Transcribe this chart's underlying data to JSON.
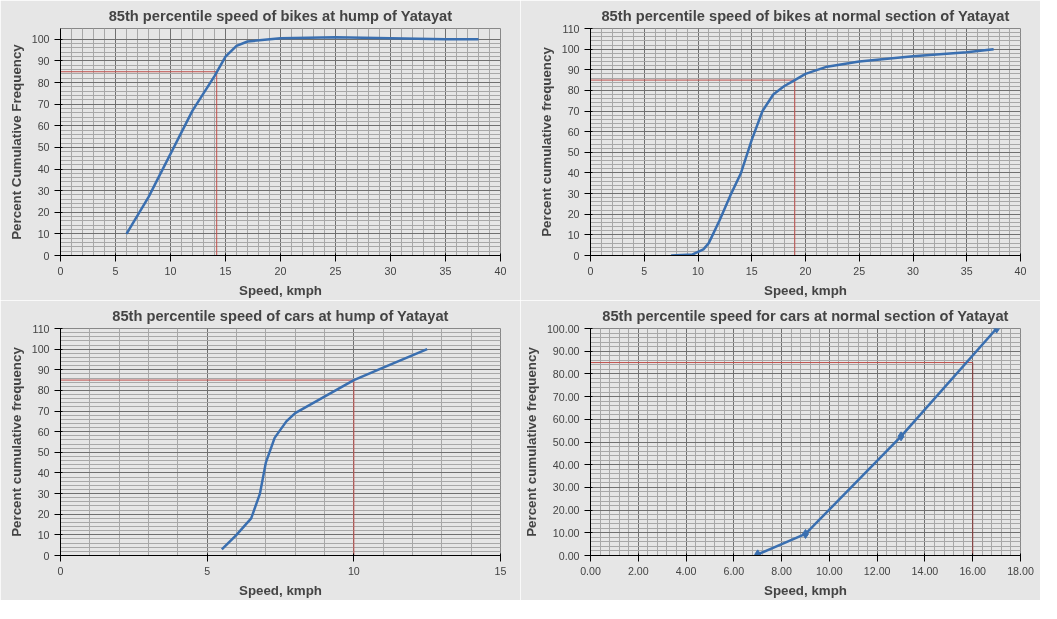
{
  "chart_data": [
    {
      "type": "line",
      "title": "85th percentile speed of bikes at hump of Yatayat",
      "xlabel": "Speed, kmph",
      "ylabel": "Percent Cumulative Frequency",
      "x": [
        6,
        8,
        10,
        12,
        14,
        15,
        16,
        17,
        20,
        25,
        30,
        35,
        38
      ],
      "series": [
        {
          "color": "#3a6fb0",
          "values": [
            10,
            27,
            47,
            67,
            83,
            92,
            97,
            99,
            100.5,
            101,
            100.5,
            100,
            100
          ]
        }
      ],
      "xlim": [
        0,
        40
      ],
      "ylim": [
        0,
        105
      ],
      "xticks": [
        0,
        5,
        10,
        15,
        20,
        25,
        30,
        35,
        40
      ],
      "yticks": [
        0,
        10,
        20,
        30,
        40,
        50,
        60,
        70,
        80,
        90,
        100
      ],
      "grid": true,
      "marker": "none",
      "ref_lines": [
        {
          "axis": "x",
          "value": 14.2,
          "color": "#c0504d"
        },
        {
          "axis": "y",
          "value": 85,
          "color": "#c0504d"
        }
      ]
    },
    {
      "type": "line",
      "title": "85th percentile speed of bikes at normal section of Yatayat",
      "xlabel": "Speed, kmph",
      "ylabel": "Percent cumulative frequency",
      "x": [
        7.5,
        9.5,
        10.5,
        11,
        12,
        13,
        14,
        15,
        16,
        17,
        18,
        19,
        20,
        22,
        25,
        30,
        35,
        37.5
      ],
      "series": [
        {
          "color": "#3a6fb0",
          "values": [
            0,
            0.5,
            3,
            6,
            17,
            29,
            40,
            56,
            70,
            78,
            82,
            85,
            88,
            91.5,
            94,
            96.5,
            98.5,
            100
          ]
        }
      ],
      "xlim": [
        0,
        40
      ],
      "ylim": [
        0,
        110
      ],
      "xticks": [
        0,
        5,
        10,
        15,
        20,
        25,
        30,
        35,
        40
      ],
      "yticks": [
        0,
        10,
        20,
        30,
        40,
        50,
        60,
        70,
        80,
        90,
        100,
        110
      ],
      "grid": true,
      "marker": "none",
      "ref_lines": [
        {
          "axis": "x",
          "value": 19,
          "color": "#c0504d"
        },
        {
          "axis": "y",
          "value": 85,
          "color": "#c0504d"
        }
      ]
    },
    {
      "type": "line",
      "title": "85th percentile speed of cars at hump of Yatayat",
      "xlabel": "Speed, kmph",
      "ylabel": "Percent cumulative frequency",
      "x": [
        5.5,
        6,
        6.5,
        6.8,
        7,
        7.3,
        7.7,
        8,
        9,
        10,
        11,
        12.5
      ],
      "series": [
        {
          "color": "#3a6fb0",
          "values": [
            3,
            10,
            18,
            30,
            45,
            57,
            65,
            69,
            77,
            85,
            91,
            100
          ]
        }
      ],
      "xlim": [
        0,
        15
      ],
      "ylim": [
        0,
        110
      ],
      "xticks": [
        0,
        5,
        10,
        15
      ],
      "yticks": [
        0,
        10,
        20,
        30,
        40,
        50,
        60,
        70,
        80,
        90,
        100,
        110
      ],
      "grid": true,
      "marker": "none",
      "ref_lines": [
        {
          "axis": "x",
          "value": 10,
          "color": "#c0504d"
        },
        {
          "axis": "y",
          "value": 85,
          "color": "#c0504d"
        }
      ]
    },
    {
      "type": "line",
      "title": "85th percentile speed for cars at normal section of Yatayat",
      "xlabel": "Speed, kmph",
      "ylabel": "Percent cumulative frequency",
      "x": [
        7,
        9,
        13,
        17
      ],
      "series": [
        {
          "color": "#3a6fb0",
          "values": [
            0.5,
            9.5,
            52.5,
            100
          ]
        }
      ],
      "xlim": [
        0,
        18
      ],
      "ylim": [
        0,
        100
      ],
      "xticks": [
        {
          "value": 0,
          "label": "0.00"
        },
        {
          "value": 2,
          "label": "2.00"
        },
        {
          "value": 4,
          "label": "4.00"
        },
        {
          "value": 6,
          "label": "6.00"
        },
        {
          "value": 8,
          "label": "8.00"
        },
        {
          "value": 10,
          "label": "10.00"
        },
        {
          "value": 12,
          "label": "12.00"
        },
        {
          "value": 14,
          "label": "14.00"
        },
        {
          "value": 16,
          "label": "16.00"
        },
        {
          "value": 18,
          "label": "18.00"
        }
      ],
      "yticks": [
        {
          "value": 0,
          "label": "0.00"
        },
        {
          "value": 10,
          "label": "10.00"
        },
        {
          "value": 20,
          "label": "20.00"
        },
        {
          "value": 30,
          "label": "30.00"
        },
        {
          "value": 40,
          "label": "40.00"
        },
        {
          "value": 50,
          "label": "50.00"
        },
        {
          "value": 60,
          "label": "60.00"
        },
        {
          "value": 70,
          "label": "70.00"
        },
        {
          "value": 80,
          "label": "80.00"
        },
        {
          "value": 90,
          "label": "90.00"
        },
        {
          "value": 100,
          "label": "100.00"
        }
      ],
      "grid": true,
      "marker": "diamond",
      "ref_lines": [
        {
          "axis": "x",
          "value": 16,
          "color": "#8b3a3a"
        },
        {
          "axis": "y",
          "value": 85,
          "color": "#c0504d"
        }
      ]
    }
  ]
}
